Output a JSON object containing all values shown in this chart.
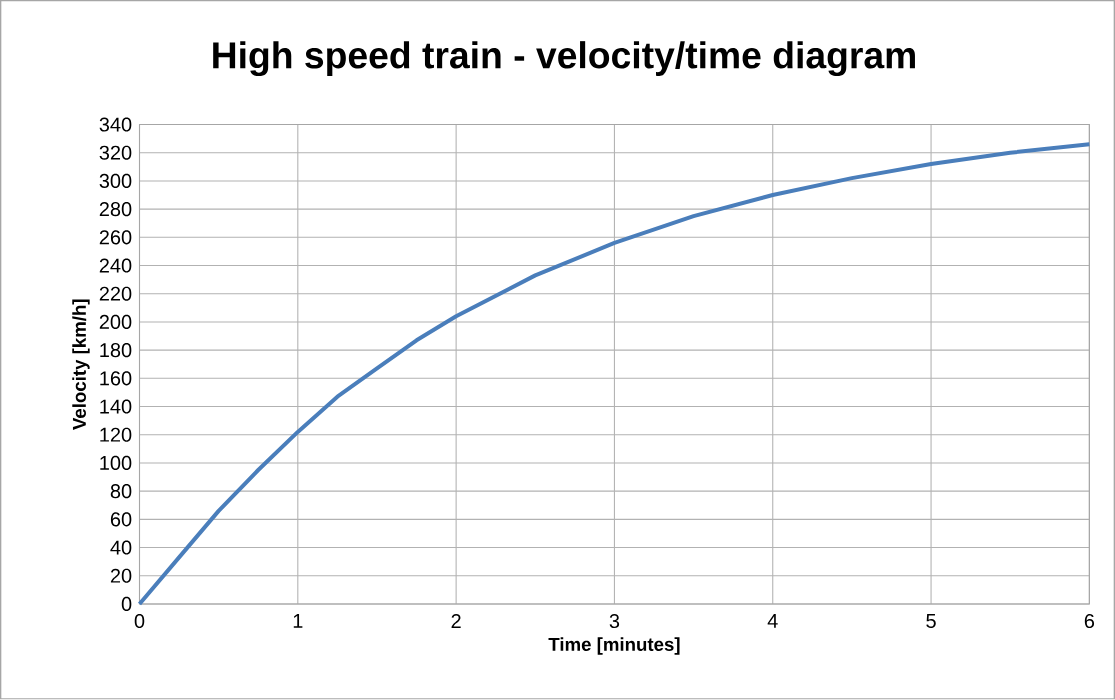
{
  "chart_data": {
    "type": "line",
    "title": "High speed train - velocity/time diagram",
    "xlabel": "Time [minutes]",
    "ylabel": "Velocity [km/h]",
    "x": [
      0,
      0.25,
      0.5,
      0.75,
      1,
      1.25,
      1.5,
      1.75,
      2,
      2.5,
      3,
      3.5,
      4,
      4.5,
      5,
      5.5,
      6
    ],
    "series": [
      {
        "color": "#4a7ebb",
        "values": [
          0,
          33,
          66,
          95,
          122,
          147,
          167,
          187,
          204,
          233,
          256,
          275,
          290,
          302,
          312,
          320,
          326
        ]
      }
    ],
    "xlim": [
      0,
      6
    ],
    "ylim": [
      0,
      340
    ],
    "xticks": [
      0,
      1,
      2,
      3,
      4,
      5,
      6
    ],
    "yticks": [
      0,
      20,
      40,
      60,
      80,
      100,
      120,
      140,
      160,
      180,
      200,
      220,
      240,
      260,
      280,
      300,
      320,
      340
    ],
    "grid": true
  }
}
